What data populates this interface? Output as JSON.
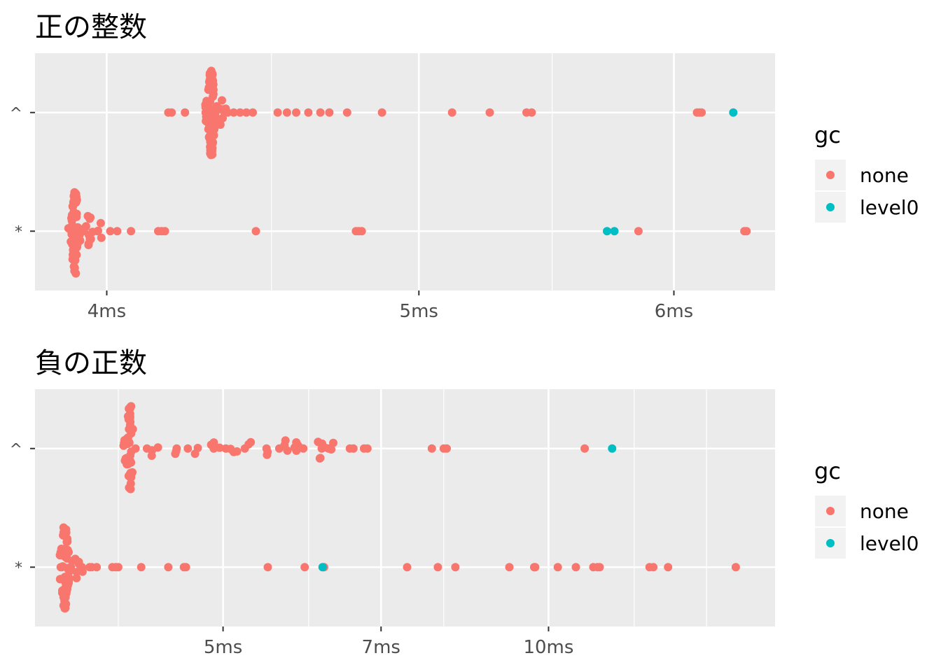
{
  "colors": {
    "panel_bg": "#ebebeb",
    "grid": "#ffffff",
    "none": "#f8766d",
    "level0": "#00bfc4",
    "legend_key_bg": "#f2f2f2"
  },
  "chart_data": [
    {
      "type": "scatter",
      "title": "正の整数",
      "x_scale": "log",
      "x_unit": "ms",
      "xlim": [
        3.8,
        6.45
      ],
      "x_ticks": [
        4,
        5,
        6
      ],
      "x_tick_labels": [
        "4ms",
        "5ms",
        "6ms"
      ],
      "x_minor_ticks": [
        4.5,
        5.5
      ],
      "categories": [
        "*",
        "^"
      ],
      "legend": {
        "title": "gc",
        "entries": [
          "none",
          "level0"
        ],
        "position": "right"
      },
      "series": [
        {
          "name": "none",
          "points": [
            {
              "x": 3.91,
              "y": "*",
              "count": 60
            },
            {
              "x": 3.95,
              "y": "*",
              "count": 12
            },
            {
              "x": 3.98,
              "y": "*",
              "count": 4
            },
            {
              "x": 4.01,
              "y": "*"
            },
            {
              "x": 4.03,
              "y": "*"
            },
            {
              "x": 4.07,
              "y": "*"
            },
            {
              "x": 4.15,
              "y": "*"
            },
            {
              "x": 4.16,
              "y": "*"
            },
            {
              "x": 4.17,
              "y": "*"
            },
            {
              "x": 4.45,
              "y": "*"
            },
            {
              "x": 4.78,
              "y": "*"
            },
            {
              "x": 4.79,
              "y": "*"
            },
            {
              "x": 4.8,
              "y": "*"
            },
            {
              "x": 5.85,
              "y": "*"
            },
            {
              "x": 6.31,
              "y": "*"
            },
            {
              "x": 6.32,
              "y": "*"
            },
            {
              "x": 4.31,
              "y": "^",
              "count": 70
            },
            {
              "x": 4.34,
              "y": "^",
              "count": 10
            },
            {
              "x": 4.18,
              "y": "^"
            },
            {
              "x": 4.19,
              "y": "^"
            },
            {
              "x": 4.23,
              "y": "^"
            },
            {
              "x": 4.38,
              "y": "^"
            },
            {
              "x": 4.4,
              "y": "^"
            },
            {
              "x": 4.42,
              "y": "^"
            },
            {
              "x": 4.44,
              "y": "^"
            },
            {
              "x": 4.52,
              "y": "^"
            },
            {
              "x": 4.55,
              "y": "^"
            },
            {
              "x": 4.58,
              "y": "^"
            },
            {
              "x": 4.62,
              "y": "^"
            },
            {
              "x": 4.66,
              "y": "^"
            },
            {
              "x": 4.69,
              "y": "^"
            },
            {
              "x": 4.75,
              "y": "^"
            },
            {
              "x": 4.87,
              "y": "^"
            },
            {
              "x": 5.12,
              "y": "^"
            },
            {
              "x": 5.26,
              "y": "^"
            },
            {
              "x": 5.4,
              "y": "^"
            },
            {
              "x": 5.42,
              "y": "^"
            },
            {
              "x": 6.1,
              "y": "^"
            },
            {
              "x": 6.11,
              "y": "^"
            },
            {
              "x": 6.12,
              "y": "^"
            }
          ]
        },
        {
          "name": "level0",
          "points": [
            {
              "x": 5.72,
              "y": "*"
            },
            {
              "x": 5.75,
              "y": "*"
            },
            {
              "x": 6.26,
              "y": "^"
            }
          ]
        }
      ]
    },
    {
      "type": "scatter",
      "title": "負の正数",
      "x_scale": "log",
      "x_unit": "ms",
      "xlim": [
        3.35,
        16.2
      ],
      "x_ticks": [
        5,
        7,
        10
      ],
      "x_tick_labels": [
        "5ms",
        "7ms",
        "10ms"
      ],
      "x_minor_ticks": [
        4,
        6,
        8,
        12,
        14
      ],
      "categories": [
        "*",
        "^"
      ],
      "legend": {
        "title": "gc",
        "entries": [
          "none",
          "level0"
        ],
        "position": "right"
      },
      "series": [
        {
          "name": "none",
          "points": [
            {
              "x": 3.57,
              "y": "*",
              "count": 55
            },
            {
              "x": 3.65,
              "y": "*",
              "count": 8
            },
            {
              "x": 3.72,
              "y": "*",
              "count": 3
            },
            {
              "x": 3.78,
              "y": "*"
            },
            {
              "x": 3.82,
              "y": "*"
            },
            {
              "x": 3.95,
              "y": "*"
            },
            {
              "x": 3.98,
              "y": "*"
            },
            {
              "x": 4.0,
              "y": "*"
            },
            {
              "x": 4.2,
              "y": "*"
            },
            {
              "x": 4.45,
              "y": "*"
            },
            {
              "x": 4.6,
              "y": "*"
            },
            {
              "x": 4.62,
              "y": "*"
            },
            {
              "x": 5.5,
              "y": "*"
            },
            {
              "x": 5.95,
              "y": "*"
            },
            {
              "x": 6.2,
              "y": "*"
            },
            {
              "x": 7.4,
              "y": "*"
            },
            {
              "x": 7.9,
              "y": "*"
            },
            {
              "x": 8.2,
              "y": "*"
            },
            {
              "x": 9.2,
              "y": "*"
            },
            {
              "x": 9.7,
              "y": "*"
            },
            {
              "x": 9.72,
              "y": "*"
            },
            {
              "x": 10.2,
              "y": "*"
            },
            {
              "x": 10.6,
              "y": "*"
            },
            {
              "x": 11.0,
              "y": "*"
            },
            {
              "x": 11.1,
              "y": "*"
            },
            {
              "x": 11.15,
              "y": "*"
            },
            {
              "x": 12.4,
              "y": "*"
            },
            {
              "x": 12.5,
              "y": "*"
            },
            {
              "x": 12.9,
              "y": "*"
            },
            {
              "x": 14.9,
              "y": "*"
            },
            {
              "x": 4.1,
              "y": "^",
              "count": 45
            },
            {
              "x": 4.3,
              "y": "^",
              "count": 4
            },
            {
              "x": 4.5,
              "y": "^",
              "count": 3
            },
            {
              "x": 4.7,
              "y": "^",
              "count": 3
            },
            {
              "x": 4.9,
              "y": "^",
              "count": 4
            },
            {
              "x": 5.1,
              "y": "^",
              "count": 4
            },
            {
              "x": 5.3,
              "y": "^",
              "count": 3
            },
            {
              "x": 5.5,
              "y": "^",
              "count": 3
            },
            {
              "x": 5.7,
              "y": "^",
              "count": 4
            },
            {
              "x": 5.85,
              "y": "^",
              "count": 5
            },
            {
              "x": 6.15,
              "y": "^",
              "count": 6
            },
            {
              "x": 6.3,
              "y": "^",
              "count": 3
            },
            {
              "x": 6.55,
              "y": "^"
            },
            {
              "x": 6.6,
              "y": "^"
            },
            {
              "x": 6.75,
              "y": "^"
            },
            {
              "x": 6.8,
              "y": "^"
            },
            {
              "x": 7.8,
              "y": "^"
            },
            {
              "x": 8.0,
              "y": "^"
            },
            {
              "x": 8.05,
              "y": "^"
            },
            {
              "x": 10.8,
              "y": "^"
            }
          ]
        },
        {
          "name": "level0",
          "points": [
            {
              "x": 6.18,
              "y": "*"
            },
            {
              "x": 11.45,
              "y": "^"
            }
          ]
        }
      ]
    }
  ]
}
